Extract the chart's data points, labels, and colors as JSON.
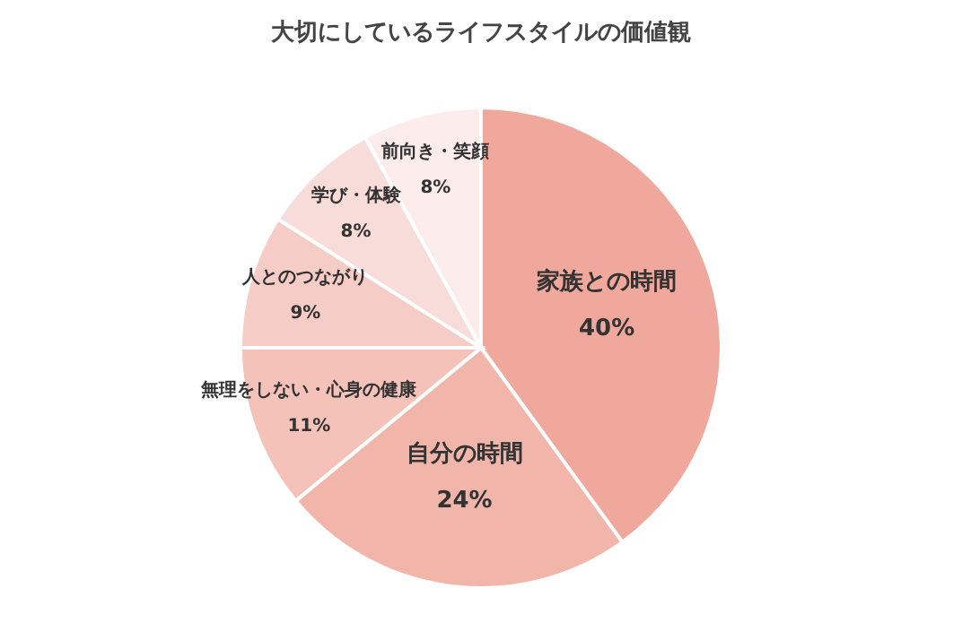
{
  "chart_data": {
    "type": "pie",
    "title": "大切にしているライフスタイルの価値観",
    "categories": [
      "家族との時間",
      "自分の時間",
      "無理をしない・心身の健康",
      "人とのつながり",
      "学び・体験",
      "前向き・笑顔"
    ],
    "values": [
      40,
      24,
      11,
      9,
      8,
      8
    ],
    "value_labels": [
      "40%",
      "24%",
      "11%",
      "9%",
      "8%",
      "8%"
    ],
    "colors": [
      "#f0a89c",
      "#f2b5aa",
      "#f4c2b9",
      "#f6ccc6",
      "#f8dcda",
      "#fcecec"
    ],
    "legend": false
  }
}
